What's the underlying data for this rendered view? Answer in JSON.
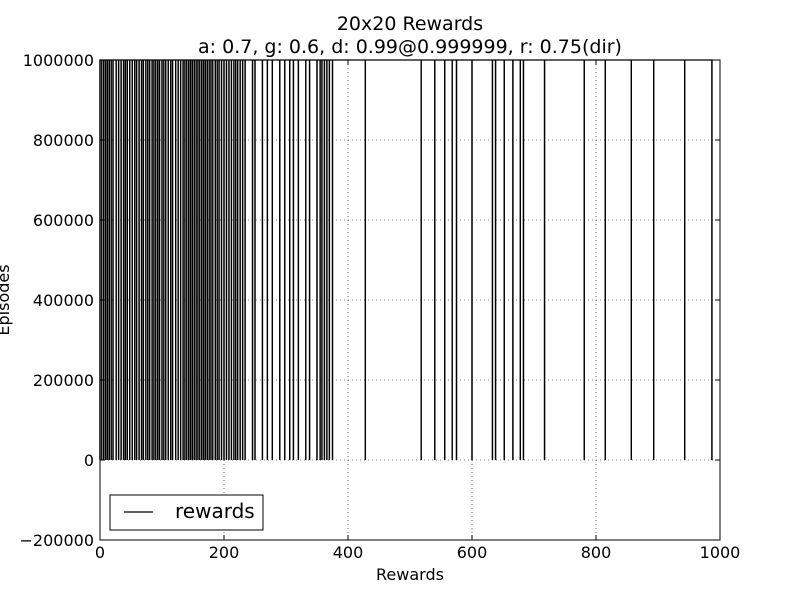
{
  "chart_data": {
    "type": "line",
    "title": "20x20 Rewards",
    "subtitle": "a: 0.7, g: 0.6, d: 0.99@0.999999, r: 0.75(dir)",
    "xlabel": "Rewards",
    "ylabel": "Episodes",
    "xlim": [
      0,
      1000
    ],
    "ylim": [
      -200000,
      1000000
    ],
    "x_ticks": [
      0,
      200,
      400,
      600,
      800,
      1000
    ],
    "y_ticks": [
      -200000,
      0,
      200000,
      400000,
      600000,
      800000,
      1000000
    ],
    "x_tick_labels": [
      "0",
      "200",
      "400",
      "600",
      "800",
      "1000"
    ],
    "y_tick_labels": [
      "−200000",
      "0",
      "200000",
      "400000",
      "600000",
      "800000",
      "1000000"
    ],
    "grid": true,
    "legend_position": "lower-left",
    "series": [
      {
        "name": "rewards",
        "color": "#000000",
        "spike_x": [
          0,
          3,
          6,
          9,
          12,
          15,
          18,
          21,
          26,
          30,
          34,
          38,
          41,
          44,
          48,
          52,
          56,
          59,
          63,
          67,
          70,
          74,
          77,
          80,
          84,
          87,
          90,
          93,
          96,
          100,
          103,
          106,
          110,
          114,
          117,
          122,
          126,
          130,
          134,
          137,
          140,
          143,
          146,
          149,
          152,
          155,
          158,
          161,
          164,
          167,
          170,
          173,
          176,
          179,
          182,
          186,
          189,
          192,
          196,
          200,
          204,
          208,
          212,
          216,
          219,
          222,
          226,
          230,
          234,
          246,
          250,
          262,
          270,
          278,
          290,
          298,
          306,
          312,
          320,
          332,
          338,
          350,
          355,
          358,
          362,
          366,
          370,
          375,
          428,
          518,
          540,
          556,
          568,
          575,
          600,
          633,
          638,
          652,
          666,
          678,
          683,
          717,
          781,
          815,
          857,
          893,
          943,
          987
        ],
        "spike_low": 0,
        "spike_high": 1000000
      }
    ]
  }
}
